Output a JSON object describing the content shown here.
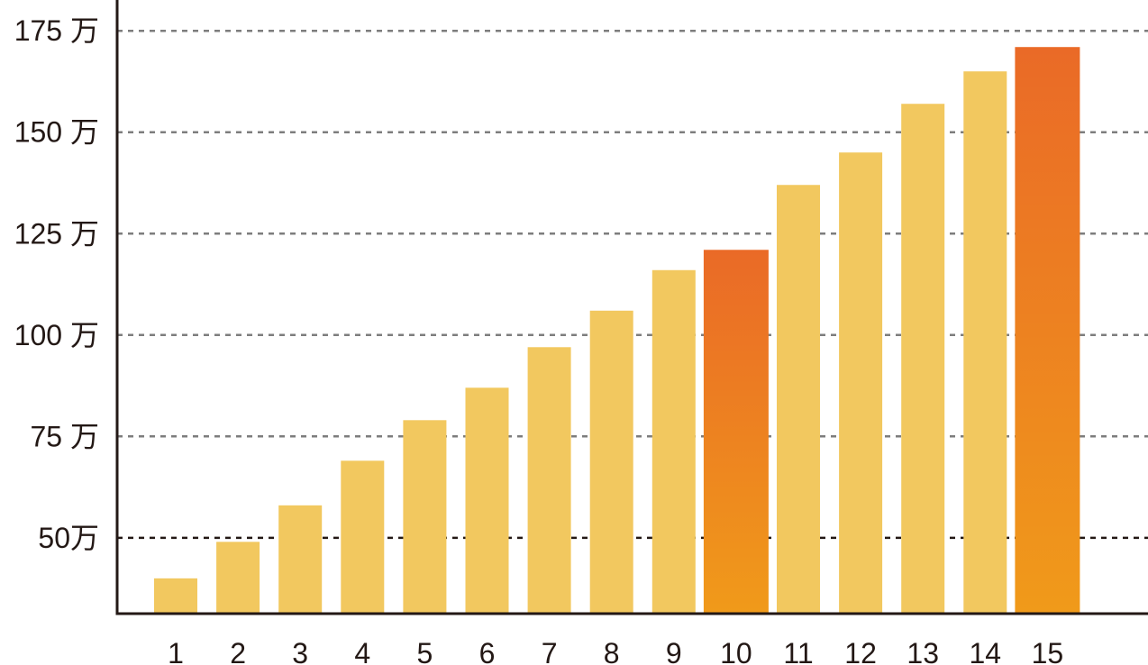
{
  "chart_data": {
    "type": "bar",
    "categories": [
      "1",
      "2",
      "3",
      "4",
      "5",
      "6",
      "7",
      "8",
      "9",
      "10",
      "11",
      "12",
      "13",
      "14",
      "15"
    ],
    "values": [
      40,
      49,
      58,
      69,
      79,
      87,
      97,
      106,
      116,
      121,
      137,
      145,
      157,
      165,
      171
    ],
    "highlight_indices": [
      9,
      14
    ],
    "y_tick_values": [
      50,
      75,
      100,
      125,
      150,
      175
    ],
    "y_tick_labels": [
      "50万",
      "75 万",
      "100 万",
      "125 万",
      "150 万",
      "175 万"
    ],
    "ylim": [
      31.3,
      182.6
    ],
    "grid": true,
    "emphasized_gridline_value": 50,
    "title": "",
    "xlabel": "",
    "ylabel": ""
  },
  "colors": {
    "bar": "#f2c85f",
    "highlight_top": "#ea6a27",
    "highlight_bottom": "#f09a1a",
    "grid": "#7d7d7d",
    "grid_emphasis": "#231815",
    "axis": "#231815",
    "text": "#231815"
  }
}
